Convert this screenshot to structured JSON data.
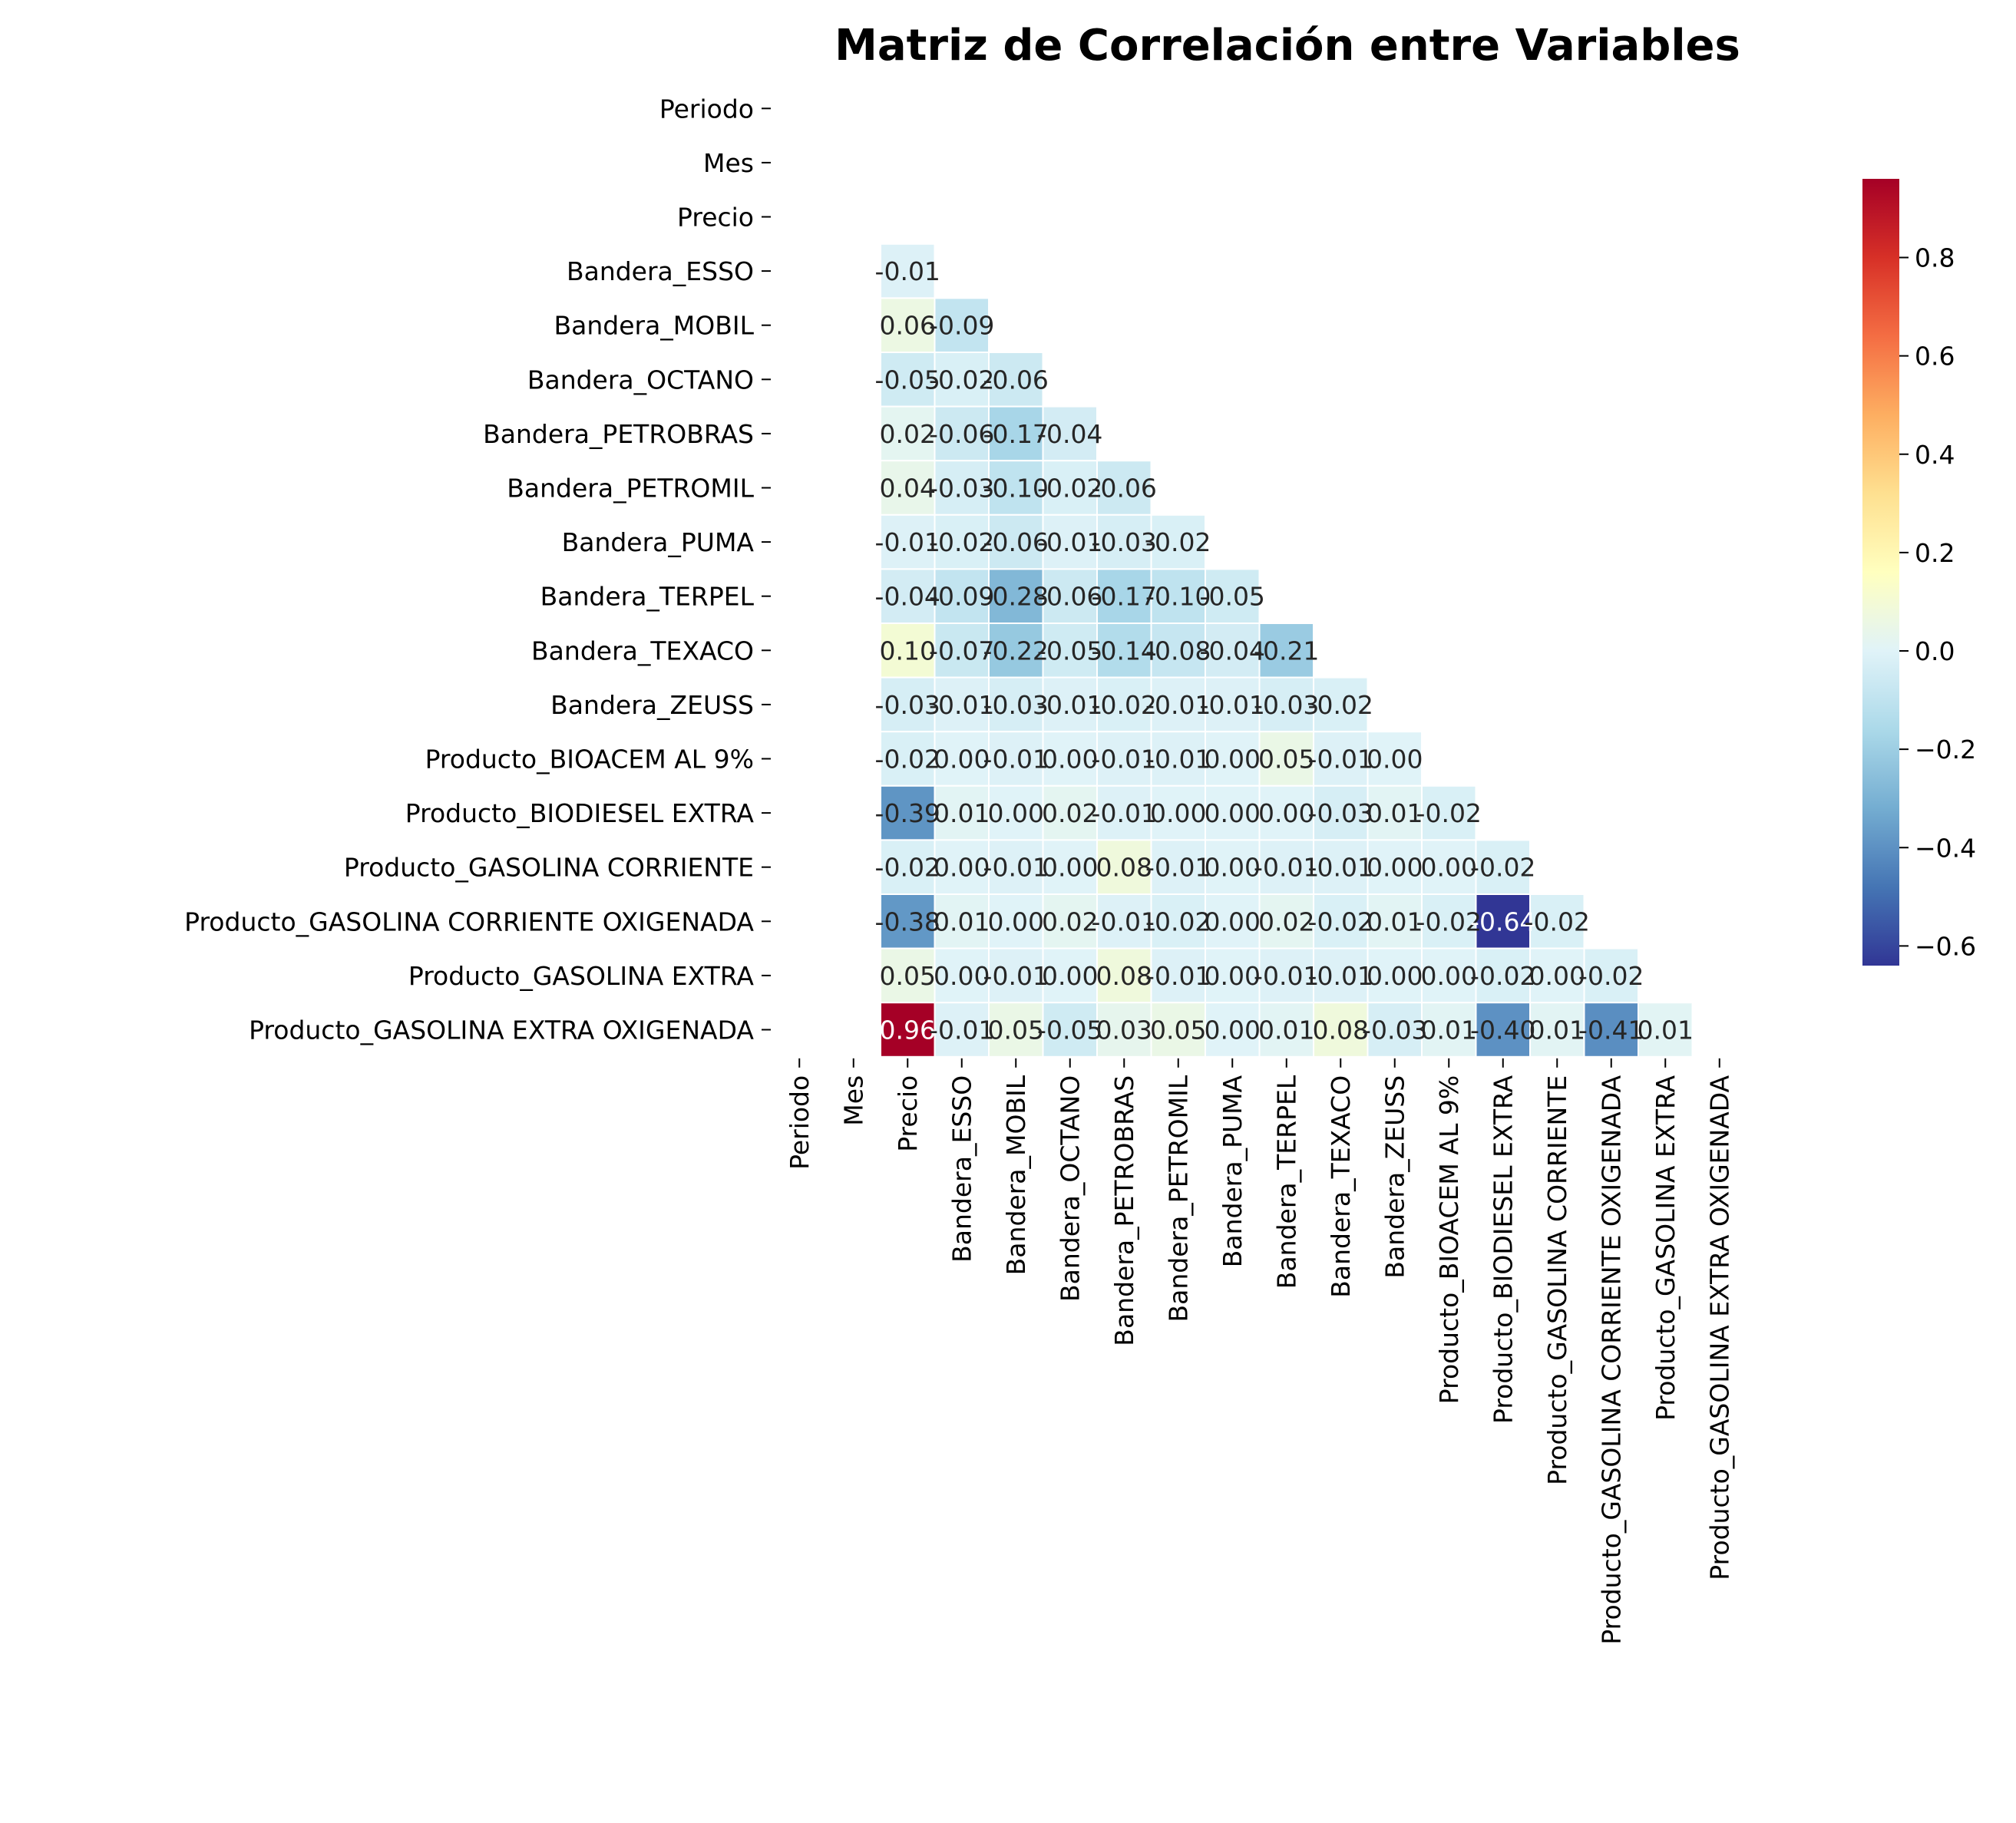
{
  "chart_data": {
    "type": "heatmap",
    "title": "Matriz de Correlación entre Variables",
    "variables": [
      "Periodo",
      "Mes",
      "Precio",
      "Bandera_ESSO",
      "Bandera_MOBIL",
      "Bandera_OCTANO",
      "Bandera_PETROBRAS",
      "Bandera_PETROMIL",
      "Bandera_PUMA",
      "Bandera_TERPEL",
      "Bandera_TEXACO",
      "Bandera_ZEUSS",
      "Producto_BIOACEM AL 9%",
      "Producto_BIODIESEL EXTRA",
      "Producto_GASOLINA CORRIENTE",
      "Producto_GASOLINA CORRIENTE OXIGENADA",
      "Producto_GASOLINA EXTRA",
      "Producto_GASOLINA EXTRA OXIGENADA"
    ],
    "mask": "upper-triangle",
    "rows": [
      {
        "row": "Bandera_ESSO",
        "values": [
          -0.01
        ]
      },
      {
        "row": "Bandera_MOBIL",
        "values": [
          0.06,
          -0.09
        ]
      },
      {
        "row": "Bandera_OCTANO",
        "values": [
          -0.05,
          -0.02,
          -0.06
        ]
      },
      {
        "row": "Bandera_PETROBRAS",
        "values": [
          0.02,
          -0.06,
          -0.17,
          -0.04
        ]
      },
      {
        "row": "Bandera_PETROMIL",
        "values": [
          0.04,
          -0.03,
          -0.1,
          -0.02,
          -0.06
        ]
      },
      {
        "row": "Bandera_PUMA",
        "values": [
          -0.01,
          -0.02,
          -0.06,
          -0.01,
          -0.03,
          -0.02
        ]
      },
      {
        "row": "Bandera_TERPEL",
        "values": [
          -0.04,
          -0.09,
          -0.28,
          -0.06,
          -0.17,
          -0.1,
          -0.05
        ]
      },
      {
        "row": "Bandera_TEXACO",
        "values": [
          0.1,
          -0.07,
          -0.22,
          -0.05,
          -0.14,
          -0.08,
          -0.04,
          -0.21
        ]
      },
      {
        "row": "Bandera_ZEUSS",
        "values": [
          -0.03,
          -0.01,
          -0.03,
          -0.01,
          -0.02,
          -0.01,
          -0.01,
          -0.03,
          -0.02
        ]
      },
      {
        "row": "Producto_BIOACEM AL 9%",
        "values": [
          -0.02,
          -0.0,
          -0.01,
          -0.0,
          -0.01,
          -0.01,
          -0.0,
          0.05,
          -0.01,
          -0.0
        ]
      },
      {
        "row": "Producto_BIODIESEL EXTRA",
        "values": [
          -0.39,
          0.01,
          -0.0,
          0.02,
          -0.01,
          -0.0,
          0.0,
          0.0,
          -0.03,
          0.01,
          -0.02
        ]
      },
      {
        "row": "Producto_GASOLINA CORRIENTE",
        "values": [
          -0.02,
          -0.0,
          -0.01,
          -0.0,
          0.08,
          -0.01,
          -0.0,
          -0.01,
          -0.01,
          -0.0,
          -0.0,
          -0.02
        ]
      },
      {
        "row": "Producto_GASOLINA CORRIENTE OXIGENADA",
        "values": [
          -0.38,
          0.01,
          -0.0,
          0.02,
          -0.01,
          -0.02,
          0.0,
          0.02,
          -0.02,
          0.01,
          -0.02,
          -0.64,
          -0.02
        ]
      },
      {
        "row": "Producto_GASOLINA EXTRA",
        "values": [
          0.05,
          -0.0,
          -0.01,
          -0.0,
          0.08,
          -0.01,
          -0.0,
          -0.01,
          -0.01,
          -0.0,
          -0.0,
          -0.02,
          -0.0,
          -0.02
        ]
      },
      {
        "row": "Producto_GASOLINA EXTRA OXIGENADA",
        "values": [
          0.96,
          -0.01,
          0.05,
          -0.05,
          0.03,
          0.05,
          -0.0,
          0.01,
          0.08,
          -0.03,
          0.01,
          -0.4,
          0.01,
          -0.41,
          0.01
        ]
      }
    ],
    "colormap": "RdYlBu_r",
    "vmin": -0.64,
    "vmax": 0.96,
    "colorbar_ticks": [
      "0.8",
      "0.6",
      "0.4",
      "0.2",
      "0.0",
      "−0.2",
      "−0.4",
      "−0.6"
    ],
    "colorbar_tick_values": [
      0.8,
      0.6,
      0.4,
      0.2,
      0.0,
      -0.2,
      -0.4,
      -0.6
    ]
  }
}
